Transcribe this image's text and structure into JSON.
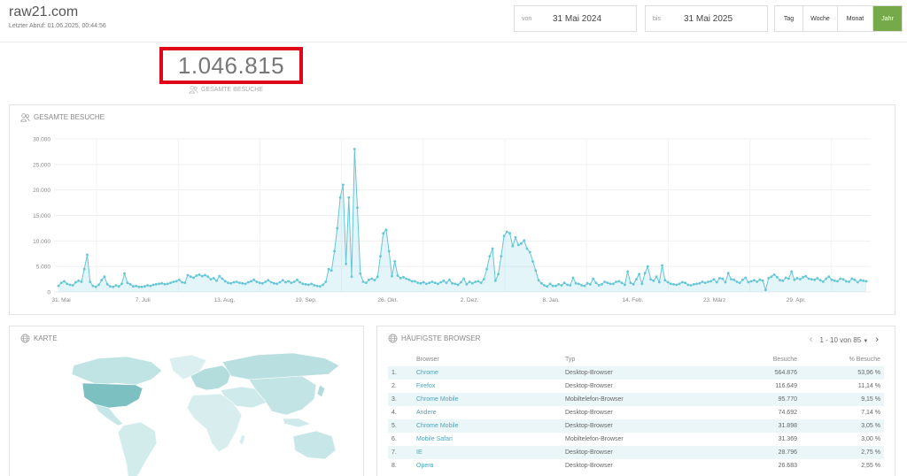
{
  "header": {
    "site": "raw21.com",
    "last_fetch": "Letzter Abruf: 01.06.2025, 00:44:56",
    "date_from": {
      "label": "von",
      "value": "31 Mai 2024"
    },
    "date_to": {
      "label": "bis",
      "value": "31 Mai 2025"
    },
    "periods": [
      "Tag",
      "Woche",
      "Monat",
      "Jahr"
    ],
    "active_period": "Jahr"
  },
  "summary": {
    "total_visits": "1.046.815",
    "label": "GESAMTE BESUCHE",
    "highlight_color": "#e0061a"
  },
  "chart_panel": {
    "title": "GESAMTE BESUCHE"
  },
  "chart_data": {
    "type": "area",
    "title": "GESAMTE BESUCHE",
    "xlabel": "",
    "ylabel": "",
    "x_start": "31. Mai",
    "x_ticks": [
      "31. Mai",
      "7. Juli",
      "13. Aug.",
      "19. Sep.",
      "26. Okt.",
      "2. Dez.",
      "8. Jan.",
      "14. Feb.",
      "23. März",
      "29. Apr."
    ],
    "y_ticks": [
      "30.000",
      "25.000",
      "20.000",
      "15.000",
      "10.000",
      "5.000",
      "0"
    ],
    "ylim": [
      0,
      30000
    ],
    "grid": true,
    "color": "#64c6d6",
    "series": [
      {
        "name": "",
        "values": [
          1200,
          1800,
          2100,
          1600,
          1400,
          1300,
          1900,
          2200,
          2000,
          4500,
          7300,
          2000,
          1200,
          1000,
          1400,
          2300,
          3000,
          1500,
          1100,
          1000,
          1300,
          1100,
          1600,
          3600,
          1800,
          1500,
          1100,
          1200,
          1000,
          1000,
          1100,
          1300,
          1200,
          1400,
          1500,
          1600,
          1700,
          1500,
          1600,
          1800,
          2000,
          2100,
          2400,
          1900,
          1800,
          3300,
          3000,
          2800,
          3200,
          3400,
          3100,
          3300,
          3000,
          2500,
          2700,
          2200,
          3100,
          2600,
          2100,
          1800,
          1700,
          1900,
          2000,
          1800,
          1700,
          1600,
          1900,
          2100,
          2400,
          2000,
          1800,
          1700,
          2000,
          2300,
          1900,
          1700,
          1600,
          1900,
          2300,
          1900,
          2100,
          1800,
          2000,
          2400,
          1900,
          1600,
          1500,
          1400,
          1600,
          1300,
          1200,
          1100,
          1400,
          2000,
          4500,
          4200,
          8000,
          12500,
          18500,
          21000,
          5500,
          18500,
          3000,
          28000,
          16500,
          3600,
          2000,
          1800,
          2400,
          2600,
          2300,
          3000,
          7000,
          11500,
          12200,
          8000,
          3100,
          6000,
          3200,
          2700,
          2900,
          2600,
          2400,
          2100,
          2100,
          1800,
          1700,
          1900,
          1600,
          1800,
          2000,
          1800,
          1600,
          1900,
          2200,
          1800,
          2400,
          1700,
          1600,
          1400,
          1900,
          2600,
          1500,
          2000,
          1700,
          2000,
          2100,
          1800,
          2500,
          4500,
          7000,
          8500,
          2200,
          3500,
          7000,
          11000,
          11800,
          11500,
          9000,
          10700,
          9200,
          9500,
          10100,
          8500,
          7800,
          6000,
          4200,
          2300,
          1700,
          1300,
          1100,
          1600,
          1200,
          1200,
          1500,
          1300,
          1800,
          1400,
          1300,
          2800,
          1700,
          1600,
          1300,
          1200,
          1700,
          1500,
          2600,
          1800,
          1300,
          1500,
          2000,
          1800,
          1600,
          1600,
          2000,
          2100,
          1800,
          1400,
          4000,
          1800,
          1500,
          2500,
          3500,
          1600,
          3700,
          5000,
          2500,
          2200,
          3000,
          1900,
          5200,
          2300,
          1900,
          1600,
          1500,
          1400,
          1600,
          1900,
          1800,
          1400,
          1300,
          1500,
          1600,
          1700,
          2000,
          1800,
          2000,
          2100,
          2500,
          1900,
          2700,
          2600,
          1900,
          3700,
          2500,
          2400,
          2000,
          1800,
          2400,
          2800,
          1900,
          2100,
          2300,
          2000,
          2400,
          2200,
          400,
          2700,
          3000,
          3400,
          2900,
          2300,
          2200,
          2800,
          2600,
          4000,
          2400,
          2700,
          2500,
          2900,
          3100,
          2600,
          2500,
          2400,
          2700,
          2300,
          2000,
          2600,
          3000,
          2400,
          2200,
          2100,
          2600,
          2500,
          2100,
          2000,
          2600,
          2400,
          1900,
          2300,
          2200,
          2100
        ]
      }
    ]
  },
  "map_panel": {
    "title": "KARTE"
  },
  "browser_panel": {
    "title": "HÄUFIGSTE BROWSER",
    "pager": "1 - 10 von 85",
    "columns": [
      "Browser",
      "Typ",
      "Besuche",
      "% Besuche"
    ],
    "rows": [
      {
        "rank": "1.",
        "browser": "Chrome",
        "type": "Desktop-Browser",
        "visits": "564.876",
        "pct": "53,96 %"
      },
      {
        "rank": "2.",
        "browser": "Firefox",
        "type": "Desktop-Browser",
        "visits": "116.649",
        "pct": "11,14 %"
      },
      {
        "rank": "3.",
        "browser": "Chrome Mobile",
        "type": "Mobiltelefon-Browser",
        "visits": "95.770",
        "pct": "9,15 %"
      },
      {
        "rank": "4.",
        "browser": "Andere",
        "type": "Desktop-Browser",
        "visits": "74.692",
        "pct": "7,14 %"
      },
      {
        "rank": "5.",
        "browser": "Chrome Mobile",
        "type": "Desktop-Browser",
        "visits": "31.898",
        "pct": "3,05 %"
      },
      {
        "rank": "6.",
        "browser": "Mobile Safari",
        "type": "Mobiltelefon-Browser",
        "visits": "31.369",
        "pct": "3,00 %"
      },
      {
        "rank": "7.",
        "browser": "IE",
        "type": "Desktop-Browser",
        "visits": "28.796",
        "pct": "2,75 %"
      },
      {
        "rank": "8.",
        "browser": "Opera",
        "type": "Desktop-Browser",
        "visits": "26.683",
        "pct": "2,55 %"
      }
    ]
  },
  "colors": {
    "accent_green": "#76a94a",
    "chart_line": "#64c6d6",
    "link": "#4aa5bd"
  }
}
